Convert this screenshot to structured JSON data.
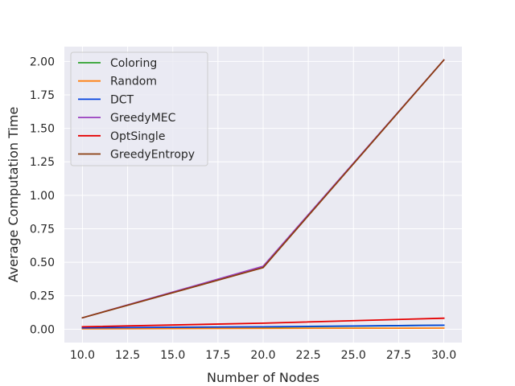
{
  "chart_data": {
    "type": "line",
    "title": "",
    "xlabel": "Number of Nodes",
    "ylabel": "Average Computation Time",
    "x": [
      10,
      20,
      30
    ],
    "xlim": [
      9,
      31
    ],
    "ylim": [
      -0.1,
      2.11
    ],
    "xticks": [
      "10.0",
      "12.5",
      "15.0",
      "17.5",
      "20.0",
      "22.5",
      "25.0",
      "27.5",
      "30.0"
    ],
    "yticks": [
      "0.00",
      "0.25",
      "0.50",
      "0.75",
      "1.00",
      "1.25",
      "1.50",
      "1.75",
      "2.00"
    ],
    "grid": true,
    "legend_position": "upper-left",
    "series": [
      {
        "name": "Coloring",
        "color": "#2ca02c",
        "values": [
          0.01,
          0.015,
          0.03
        ]
      },
      {
        "name": "Random",
        "color": "#ff7f0e",
        "values": [
          0.003,
          0.006,
          0.008
        ]
      },
      {
        "name": "DCT",
        "color": "#0343df",
        "values": [
          0.01,
          0.018,
          0.03
        ]
      },
      {
        "name": "GreedyMEC",
        "color": "#9a40c0",
        "values": [
          0.085,
          0.47,
          2.01
        ]
      },
      {
        "name": "OptSingle",
        "color": "#e50000",
        "values": [
          0.018,
          0.045,
          0.082
        ]
      },
      {
        "name": "GreedyEntropy",
        "color": "#8b3d0f",
        "values": [
          0.085,
          0.46,
          2.01
        ]
      }
    ]
  }
}
